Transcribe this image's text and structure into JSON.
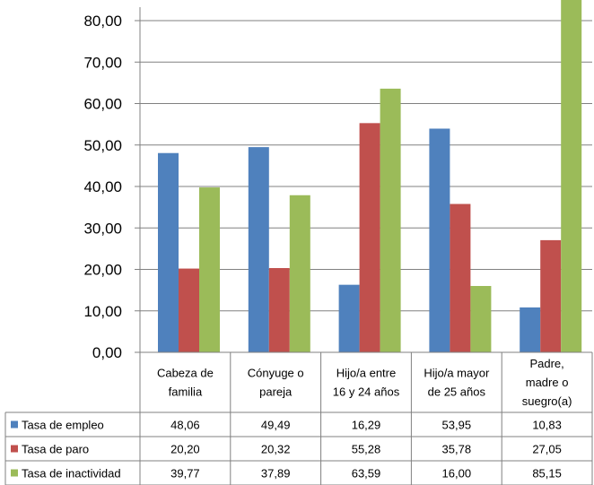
{
  "chart_data": {
    "type": "bar",
    "title": "",
    "xlabel": "",
    "ylabel": "",
    "ylim": [
      0,
      85
    ],
    "yticks": [
      "0,00",
      "10,00",
      "20,00",
      "30,00",
      "40,00",
      "50,00",
      "60,00",
      "70,00",
      "80,00"
    ],
    "categories": [
      [
        "Cabeza de",
        "familia"
      ],
      [
        "Cónyuge o",
        "pareja"
      ],
      [
        "Hijo/a entre",
        "16 y 24 años"
      ],
      [
        "Hijo/a mayor",
        "de 25 años"
      ],
      [
        "Padre,",
        "madre o",
        "suegro(a)"
      ]
    ],
    "series": [
      {
        "name": "Tasa de empleo",
        "color": "#4f81bd",
        "values": [
          48.06,
          49.49,
          16.29,
          53.95,
          10.83
        ],
        "labels": [
          "48,06",
          "49,49",
          "16,29",
          "53,95",
          "10,83"
        ]
      },
      {
        "name": "Tasa de paro",
        "color": "#c0504d",
        "values": [
          20.2,
          20.32,
          55.28,
          35.78,
          27.05
        ],
        "labels": [
          "20,20",
          "20,32",
          "55,28",
          "35,78",
          "27,05"
        ]
      },
      {
        "name": "Tasa de inactividad",
        "color": "#9bbb59",
        "values": [
          39.77,
          37.89,
          63.59,
          16.0,
          85.15
        ],
        "labels": [
          "39,77",
          "37,89",
          "63,59",
          "16,00",
          "85,15"
        ]
      }
    ],
    "grid": true,
    "legend": "data-table"
  }
}
